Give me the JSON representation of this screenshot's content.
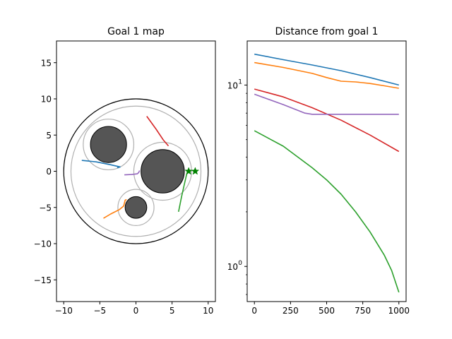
{
  "chart_data": [
    {
      "type": "scatter",
      "title": "Goal 1 map",
      "xlim": [
        -11,
        11
      ],
      "ylim": [
        -18,
        18
      ],
      "xticks": [
        -10,
        -5,
        0,
        5,
        10
      ],
      "yticks": [
        -15,
        -10,
        -5,
        0,
        5,
        10,
        15
      ],
      "xtick_labels": [
        "−10",
        "−5",
        "0",
        "5",
        "10"
      ],
      "ytick_labels": [
        "−15",
        "−10",
        "−5",
        "0",
        "5",
        "10",
        "15"
      ],
      "boundary": {
        "cx": 0,
        "cy": 0,
        "r": 10,
        "color": "#000000"
      },
      "inner_boundary": {
        "cx": 0,
        "cy": 0,
        "r": 9,
        "color": "#b0b0b0"
      },
      "obstacles": [
        {
          "cx": -3.8,
          "cy": 3.7,
          "r": 2.5,
          "halo_r": 3.5
        },
        {
          "cx": 3.7,
          "cy": 0,
          "r": 3,
          "halo_r": 4
        },
        {
          "cx": 0,
          "cy": -5,
          "r": 1.5,
          "halo_r": 2.5
        }
      ],
      "obstacle_fill": "#555555",
      "halo_color": "#b0b0b0",
      "goals": [
        {
          "x": 7.3,
          "y": 0
        },
        {
          "x": 8.2,
          "y": 0
        }
      ],
      "goal_color": "#008000",
      "series": [
        {
          "color": "#1f77b4",
          "x": [
            -7.5,
            -5.5,
            -3.5,
            -2.2,
            -2.6
          ],
          "y": [
            1.5,
            1.3,
            0.9,
            0.6,
            0.5
          ]
        },
        {
          "color": "#ff7f0e",
          "x": [
            -4.5,
            -3.5,
            -2.3,
            -1.7,
            -1.5,
            -1.3
          ],
          "y": [
            -6.5,
            -5.9,
            -5.3,
            -4.8,
            -4.0,
            -3.9
          ]
        },
        {
          "color": "#2ca02c",
          "x": [
            5.9,
            6.3,
            6.7,
            7.0,
            7.2
          ],
          "y": [
            -5.6,
            -3.6,
            -1.8,
            -0.5,
            0.1
          ]
        },
        {
          "color": "#d62728",
          "x": [
            1.5,
            2.8,
            3.8,
            4.5
          ],
          "y": [
            7.6,
            5.8,
            4.3,
            3.5
          ]
        },
        {
          "color": "#9467bd",
          "x": [
            -1.6,
            -0.6,
            0.2,
            0.4,
            0.5
          ],
          "y": [
            -0.5,
            -0.45,
            -0.35,
            -0.15,
            0.1
          ]
        }
      ]
    },
    {
      "type": "line",
      "title": "Distance from goal 1",
      "xlim": [
        -50,
        1050
      ],
      "ylim": [
        0.64,
        17.5
      ],
      "yscale": "log",
      "xticks": [
        0,
        250,
        500,
        750,
        1000
      ],
      "xtick_labels": [
        "0",
        "250",
        "500",
        "750",
        "1000"
      ],
      "yticks": [
        1,
        10
      ],
      "ytick_labels_main": [
        "10",
        "10"
      ],
      "ytick_labels_exp": [
        "0",
        "1"
      ],
      "series": [
        {
          "color": "#1f77b4",
          "x": [
            0,
            200,
            400,
            600,
            800,
            1000
          ],
          "y": [
            14.8,
            13.8,
            12.9,
            12.0,
            11.0,
            10.0
          ]
        },
        {
          "color": "#ff7f0e",
          "x": [
            0,
            200,
            400,
            500,
            600,
            700,
            800,
            900,
            1000
          ],
          "y": [
            13.3,
            12.5,
            11.6,
            11.0,
            10.5,
            10.4,
            10.2,
            9.9,
            9.6
          ]
        },
        {
          "color": "#d62728",
          "x": [
            0,
            200,
            400,
            600,
            800,
            1000
          ],
          "y": [
            9.5,
            8.6,
            7.5,
            6.4,
            5.3,
            4.3
          ]
        },
        {
          "color": "#9467bd",
          "x": [
            0,
            200,
            350,
            400,
            450,
            600,
            800,
            1000
          ],
          "y": [
            8.9,
            7.8,
            7.0,
            6.9,
            6.9,
            6.9,
            6.9,
            6.9
          ]
        },
        {
          "color": "#2ca02c",
          "x": [
            0,
            200,
            400,
            500,
            600,
            700,
            800,
            900,
            950,
            1000
          ],
          "y": [
            5.6,
            4.6,
            3.5,
            3.0,
            2.5,
            2.0,
            1.55,
            1.15,
            0.95,
            0.72
          ]
        }
      ]
    }
  ]
}
